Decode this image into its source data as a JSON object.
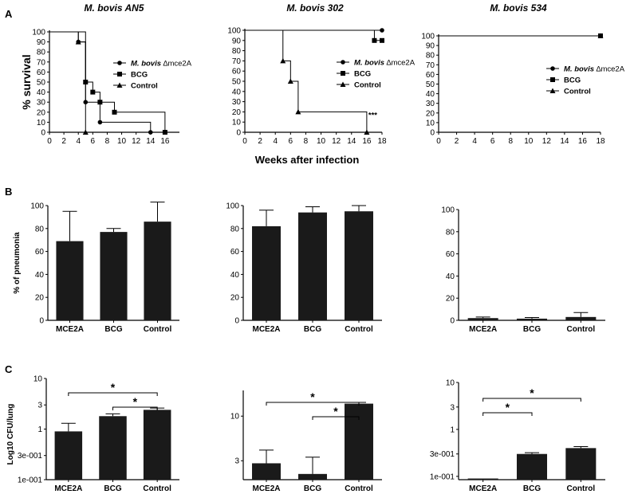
{
  "panel_labels": [
    "A",
    "B",
    "C"
  ],
  "row_a_ylabel": "% survival",
  "row_a_xlabel": "Weeks  after infection",
  "row_b_ylabel": "% of pneumonia",
  "row_c_ylabel": "Log10 CFU/lung",
  "chart_data": [
    {
      "type": "line",
      "row": "A",
      "title": "M. bovis AN5",
      "xlim": [
        0,
        18
      ],
      "ylim": [
        0,
        100
      ],
      "xticks": [
        0,
        2,
        4,
        6,
        8,
        10,
        12,
        14,
        16
      ],
      "yticks": [
        0,
        10,
        20,
        30,
        40,
        50,
        60,
        70,
        80,
        90,
        100
      ],
      "legend": "top-right",
      "series": [
        {
          "name": "M. bovis ∆mce2A",
          "marker": "circle",
          "x": [
            0,
            4,
            4,
            5,
            5,
            7,
            7,
            14,
            14
          ],
          "y": [
            100,
            100,
            90,
            90,
            30,
            30,
            10,
            10,
            0
          ]
        },
        {
          "name": "BCG",
          "marker": "square",
          "x": [
            0,
            5,
            5,
            6,
            6,
            7,
            7,
            9,
            9,
            16,
            16
          ],
          "y": [
            100,
            100,
            50,
            50,
            40,
            40,
            30,
            30,
            20,
            20,
            0
          ]
        },
        {
          "name": "Control",
          "marker": "triangle",
          "x": [
            0,
            4,
            4,
            5,
            5
          ],
          "y": [
            100,
            100,
            90,
            90,
            0
          ]
        }
      ]
    },
    {
      "type": "line",
      "row": "A",
      "title": "M. bovis 302",
      "xlim": [
        0,
        18
      ],
      "ylim": [
        0,
        100
      ],
      "xticks": [
        0,
        2,
        4,
        6,
        8,
        10,
        12,
        14,
        16,
        18
      ],
      "yticks": [
        0,
        10,
        20,
        30,
        40,
        50,
        60,
        70,
        80,
        90,
        100
      ],
      "legend": "right",
      "annotation": "***",
      "series": [
        {
          "name": "M. bovis ∆mce2A",
          "marker": "circle",
          "x": [
            0,
            18
          ],
          "y": [
            100,
            100
          ]
        },
        {
          "name": "BCG",
          "marker": "square",
          "x": [
            0,
            17,
            17,
            18
          ],
          "y": [
            100,
            100,
            90,
            90
          ]
        },
        {
          "name": "Control",
          "marker": "triangle",
          "x": [
            0,
            5,
            5,
            6,
            6,
            7,
            7,
            16,
            16
          ],
          "y": [
            100,
            100,
            70,
            70,
            50,
            50,
            20,
            20,
            0
          ]
        }
      ]
    },
    {
      "type": "line",
      "row": "A",
      "title": "M. bovis 534",
      "xlim": [
        0,
        18
      ],
      "ylim": [
        0,
        100
      ],
      "xticks": [
        0,
        2,
        4,
        6,
        8,
        10,
        12,
        14,
        16,
        18
      ],
      "yticks": [
        0,
        10,
        20,
        30,
        40,
        50,
        60,
        70,
        80,
        90,
        100
      ],
      "legend": "right",
      "series": [
        {
          "name": "M. bovis ∆mce2A",
          "marker": "circle",
          "x": [
            0,
            18
          ],
          "y": [
            100,
            100
          ]
        },
        {
          "name": "BCG",
          "marker": "square",
          "x": [
            0,
            18
          ],
          "y": [
            100,
            100
          ]
        },
        {
          "name": "Control",
          "marker": "triangle",
          "x": [
            0,
            18
          ],
          "y": [
            100,
            100
          ]
        }
      ]
    },
    {
      "type": "bar",
      "row": "B",
      "categories": [
        "MCE2A",
        "BCG",
        "Control"
      ],
      "values": [
        69,
        77,
        86
      ],
      "errors": [
        26,
        3,
        17
      ],
      "ylim": [
        0,
        100
      ],
      "yticks": [
        0,
        20,
        40,
        60,
        80,
        100
      ]
    },
    {
      "type": "bar",
      "row": "B",
      "categories": [
        "MCE2A",
        "BCG",
        "Control"
      ],
      "values": [
        82,
        94,
        95
      ],
      "errors": [
        14,
        5,
        5
      ],
      "ylim": [
        0,
        100
      ],
      "yticks": [
        0,
        20,
        40,
        60,
        80,
        100
      ]
    },
    {
      "type": "bar",
      "row": "B",
      "categories": [
        "MCE2A",
        "BCG",
        "Control"
      ],
      "values": [
        2,
        1.5,
        3
      ],
      "errors": [
        1,
        1,
        4
      ],
      "ylim": [
        0,
        100
      ],
      "yticks": [
        0,
        20,
        40,
        60,
        80,
        100
      ]
    },
    {
      "type": "bar",
      "row": "C",
      "scale": "log",
      "categories": [
        "MCE2A",
        "BCG",
        "Control"
      ],
      "values": [
        0.9,
        1.8,
        2.4
      ],
      "errors_upper": [
        1.3,
        2.0,
        2.6
      ],
      "ylim": [
        0.1,
        10
      ],
      "yticks": [
        0.1,
        0.3,
        1,
        3,
        10
      ],
      "yticklabels": [
        "1e-001",
        "3e-001",
        "1",
        "3",
        "10"
      ],
      "significance": [
        {
          "from": "MCE2A",
          "to": "Control",
          "label": "*"
        },
        {
          "from": "BCG",
          "to": "Control",
          "label": "*"
        }
      ]
    },
    {
      "type": "bar",
      "row": "C",
      "scale": "log",
      "categories": [
        "MCE2A",
        "BCG",
        "Control"
      ],
      "values": [
        2.8,
        2.1,
        14
      ],
      "errors_upper": [
        4.0,
        3.3,
        14.5
      ],
      "ylim": [
        1.8,
        20
      ],
      "yticks": [
        3,
        10
      ],
      "yticklabels": [
        "3",
        "10"
      ],
      "significance": [
        {
          "from": "MCE2A",
          "to": "Control",
          "label": "*"
        },
        {
          "from": "BCG",
          "to": "Control",
          "label": "*"
        }
      ]
    },
    {
      "type": "bar",
      "row": "C",
      "scale": "log",
      "categories": [
        "MCE2A",
        "BCG",
        "Control"
      ],
      "values": [
        0.09,
        0.3,
        0.4
      ],
      "errors_upper": [
        0.09,
        0.32,
        0.43
      ],
      "ylim": [
        0.085,
        10
      ],
      "yticks": [
        0.1,
        0.3,
        1,
        3,
        10
      ],
      "yticklabels": [
        "1e-001",
        "3e-001",
        "1",
        "3",
        "10"
      ],
      "significance": [
        {
          "from": "MCE2A",
          "to": "Control",
          "label": "*"
        },
        {
          "from": "MCE2A",
          "to": "BCG",
          "label": "*"
        }
      ]
    }
  ]
}
